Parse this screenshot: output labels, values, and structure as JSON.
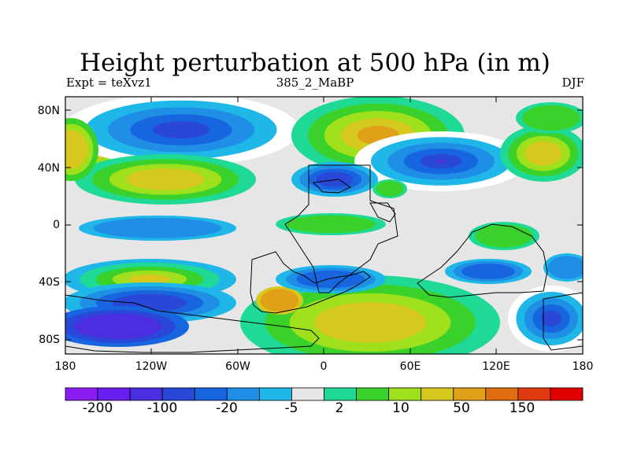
{
  "title": "Height perturbation at 500 hPa (in m)",
  "left_string": "Expt = teXvz1",
  "center_string": "385_2_MaBP",
  "right_string": "DJF",
  "lat_labels": [
    "80N",
    "40N",
    "0",
    "40S",
    "80S"
  ],
  "lon_labels": [
    "180",
    "120W",
    "60W",
    "0",
    "60E",
    "120E",
    "180"
  ],
  "colorbar": {
    "colors": [
      "#8b1cf2",
      "#6a1ef0",
      "#4b2ee0",
      "#2a48d8",
      "#1766e0",
      "#1f8fe6",
      "#1fb6e8",
      "#e6e6e6",
      "#1fda95",
      "#3ad22a",
      "#9fe01c",
      "#d6c81c",
      "#e0a018",
      "#e06c10",
      "#e03a10",
      "#e00000"
    ],
    "labels": [
      "-200",
      "-100",
      "-20",
      "-5",
      "2",
      "10",
      "50",
      "150"
    ],
    "label_at_boundary": [
      1,
      3,
      5,
      7,
      8,
      10,
      12,
      14
    ]
  },
  "colors": {
    "background": "#e6e6e6",
    "white": "#ffffff",
    "cyan": "#1fb6e8",
    "sky": "#1f8fe6",
    "blue": "#1766e0",
    "deep_blue": "#2a48d8",
    "purple_blue": "#4b2ee0",
    "teal": "#1fda95",
    "green": "#3ad22a",
    "yellow_green": "#9fe01c",
    "olive": "#d6c81c",
    "orange": "#e0a018",
    "dark_orange": "#e06c10",
    "outline": "#000000"
  }
}
